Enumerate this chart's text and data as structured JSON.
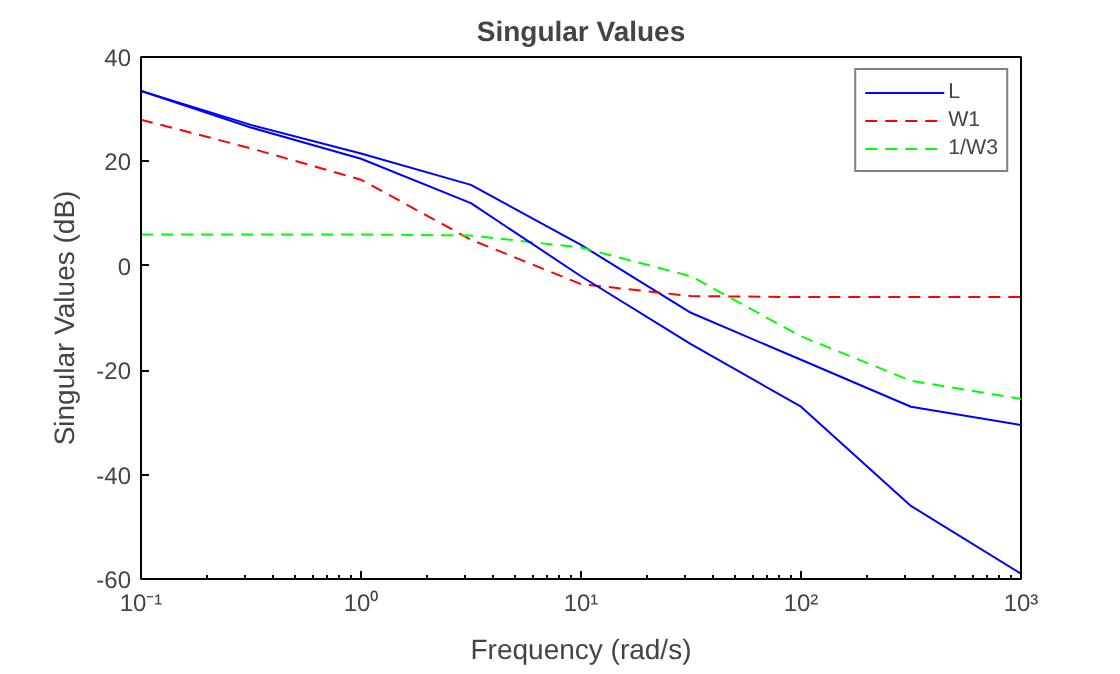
{
  "chart_data": {
    "type": "line",
    "title": "Singular Values",
    "xlabel": "Frequency (rad/s)",
    "ylabel": "Singular Values (dB)",
    "log": "x",
    "xlim": [
      0.1,
      1000
    ],
    "ylim": [
      -60,
      40
    ],
    "xticks": [
      {
        "value": 0.1,
        "label": "10⁻¹"
      },
      {
        "value": 1,
        "label": "10⁰"
      },
      {
        "value": 10,
        "label": "10¹"
      },
      {
        "value": 100,
        "label": "10²"
      },
      {
        "value": 1000,
        "label": "10³"
      }
    ],
    "yticks": [
      -60,
      -40,
      -20,
      0,
      20,
      40
    ],
    "grid": false,
    "legend": "top right",
    "series": [
      {
        "name": "L",
        "color": "#0000ff",
        "line_style": "solid",
        "x": [
          0.1,
          0.316,
          1,
          3.16,
          10,
          31.6,
          100,
          316,
          1000
        ],
        "values": [
          33.5,
          27,
          21.5,
          15.5,
          4,
          -9,
          -18,
          -27,
          -30.5
        ]
      },
      {
        "name": "W1",
        "color": "#ff0000",
        "line_style": "dashed",
        "x": [
          0.1,
          0.316,
          1,
          3.16,
          10,
          31.6,
          100,
          316,
          1000
        ],
        "values": [
          28,
          22.5,
          16.5,
          5,
          -3.5,
          -5.8,
          -6,
          -6,
          -6
        ]
      },
      {
        "name": "1/W3",
        "color": "#00ff00",
        "line_style": "dashed",
        "x": [
          0.1,
          1,
          3.16,
          10,
          31.6,
          100,
          316,
          1000
        ],
        "values": [
          6,
          6,
          5.8,
          3.5,
          -2,
          -13.5,
          -22,
          -25.5
        ]
      },
      {
        "color": "#0000ff",
        "line_style": "solid",
        "x": [
          0.1,
          0.316,
          1,
          3.16,
          10,
          31.6,
          100,
          316,
          1000
        ],
        "values": [
          33.5,
          26.5,
          20.5,
          12,
          -2,
          -15,
          -27,
          -46,
          -59
        ]
      }
    ]
  }
}
